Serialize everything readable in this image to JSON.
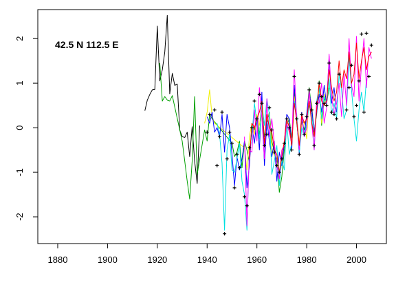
{
  "chart_data": {
    "type": "line",
    "title": "",
    "xlabel": "",
    "ylabel": "",
    "annotation": "42.5 N  112.5 E",
    "xlim": [
      1872,
      2012
    ],
    "ylim": [
      -2.6,
      2.65
    ],
    "x_ticks": [
      1880,
      1900,
      1920,
      1940,
      1960,
      1980,
      2000
    ],
    "y_ticks": [
      -2,
      -1,
      0,
      1,
      2
    ],
    "grid": false,
    "legend": "none",
    "series": [
      {
        "color": "#000000",
        "x": [
          1915,
          1916,
          1917,
          1918,
          1919,
          1920,
          1921,
          1922,
          1923,
          1924,
          1925,
          1926,
          1927,
          1928,
          1929,
          1930,
          1931,
          1932,
          1933,
          1934,
          1935,
          1936,
          1937
        ],
        "values": [
          0.38,
          0.62,
          0.75,
          0.85,
          0.86,
          2.28,
          1.05,
          1.3,
          1.7,
          2.52,
          0.76,
          1.22,
          0.95,
          0.98,
          -0.05,
          -0.2,
          -0.22,
          -0.1,
          -0.65,
          0.02,
          -0.75,
          -1.25,
          0.05
        ]
      },
      {
        "color": "#00A000",
        "x": [
          1921,
          1922,
          1923,
          1924,
          1925,
          1926,
          1930,
          1931,
          1932,
          1933,
          1934,
          1935,
          1936,
          1939,
          1940,
          1941,
          1942,
          1950,
          1951,
          1952,
          1953,
          1954,
          1955,
          1956,
          1957,
          1958,
          1959,
          1960,
          1961,
          1962,
          1963,
          1964,
          1965,
          1966,
          1967,
          1968,
          1969,
          1970,
          1971,
          1972,
          1973,
          1974,
          1975,
          1976,
          1977,
          1978,
          1979,
          1980,
          1981,
          1982,
          1983,
          1984,
          1985,
          1986,
          1987,
          1988,
          1989
        ],
        "values": [
          1.45,
          0.6,
          0.7,
          0.62,
          0.6,
          0.72,
          -0.3,
          -0.75,
          -1.2,
          -1.6,
          -0.75,
          0.7,
          -1.05,
          -0.05,
          -0.3,
          0.3,
          0.2,
          -0.35,
          -0.65,
          -0.55,
          -0.3,
          -0.9,
          -0.3,
          -0.5,
          -0.8,
          0.1,
          -0.05,
          0.25,
          -0.15,
          0.45,
          -0.2,
          0.1,
          0.35,
          -0.3,
          -0.55,
          -0.7,
          -1.45,
          -1.1,
          -0.5,
          0.05,
          0.2,
          -0.25,
          0.8,
          0.1,
          -0.4,
          0.15,
          -0.05,
          0.25,
          0.9,
          0.4,
          -0.1,
          0.3,
          1.05,
          0.05,
          0.65,
          0.55,
          0.9
        ]
      },
      {
        "color": "#F0F000",
        "x": [
          1939,
          1940,
          1941,
          1942,
          1943,
          1955,
          1956,
          1957,
          1958,
          1959,
          1960,
          1961,
          1962,
          1963,
          1964,
          1965,
          1966,
          1967,
          1968,
          1969,
          1970,
          1971,
          1972,
          1973,
          1974,
          1975,
          1976,
          1977,
          1978,
          1979,
          1980,
          1981,
          1982,
          1983,
          1984,
          1985,
          1986,
          1987,
          1988
        ],
        "values": [
          0.1,
          0.35,
          0.85,
          0.25,
          0.1,
          -0.45,
          -0.95,
          -0.2,
          0.1,
          -0.15,
          0.3,
          0.05,
          0.5,
          -0.4,
          0.25,
          0.3,
          -0.55,
          -0.6,
          -0.8,
          -1.05,
          -0.5,
          -0.4,
          0.1,
          0.1,
          -0.45,
          0.7,
          0.25,
          -0.35,
          0.05,
          0.15,
          -0.25,
          0.75,
          0.55,
          -0.15,
          0.45,
          0.9,
          0.1,
          0.75,
          0.5
        ]
      },
      {
        "color": "#0000FF",
        "x": [
          1940,
          1941,
          1942,
          1943,
          1944,
          1945,
          1946,
          1947,
          1948,
          1949,
          1950,
          1951,
          1952,
          1953,
          1954,
          1955,
          1956,
          1957,
          1958,
          1959,
          1960,
          1961,
          1962,
          1963,
          1964,
          1965,
          1966,
          1967,
          1968,
          1969,
          1970,
          1971,
          1972,
          1973,
          1974,
          1975,
          1976,
          1977,
          1978,
          1979,
          1980,
          1981,
          1982,
          1983,
          1984,
          1985,
          1986,
          1987,
          1988,
          1989,
          1990,
          1991,
          1992
        ],
        "values": [
          0.25,
          0.1,
          0.35,
          -0.1,
          0.0,
          -0.2,
          0.3,
          -0.55,
          0.3,
          0.0,
          -0.6,
          -1.3,
          -0.65,
          -0.95,
          -0.7,
          -0.3,
          -1.35,
          -0.85,
          0.05,
          -0.35,
          0.2,
          -0.5,
          0.8,
          -0.85,
          0.15,
          -0.3,
          -0.65,
          -0.3,
          -1.2,
          -0.55,
          -0.85,
          -0.35,
          0.3,
          0.2,
          -0.5,
          0.95,
          0.2,
          -0.6,
          0.35,
          -0.2,
          0.3,
          0.8,
          0.45,
          -0.1,
          0.35,
          0.75,
          0.35,
          0.95,
          0.5,
          1.6,
          0.55,
          0.9,
          0.35
        ]
      },
      {
        "color": "#00E0E0",
        "x": [
          1944,
          1945,
          1946,
          1947,
          1948,
          1949,
          1950,
          1951,
          1952,
          1953,
          1954,
          1955,
          1956,
          1957,
          1958,
          1959,
          1960,
          1961,
          1962,
          1963,
          1964,
          1965,
          1966,
          1967,
          1968,
          1969,
          1970,
          1971,
          1972,
          1973,
          1974,
          1975,
          1976,
          1977,
          1978,
          1979,
          1980,
          1981,
          1982,
          1983,
          1984,
          1985,
          1986,
          1987,
          1988,
          1989,
          1990,
          1991,
          1992,
          1993,
          1994,
          1995,
          1996,
          1997,
          1998,
          1999,
          2000,
          2001,
          2002,
          2003,
          2004
        ],
        "values": [
          0.1,
          -0.15,
          -0.8,
          -2.3,
          -0.5,
          -0.15,
          -0.95,
          -1.0,
          -0.7,
          -0.35,
          -1.2,
          -1.5,
          -2.3,
          -0.45,
          -0.2,
          0.55,
          0.1,
          -0.25,
          0.55,
          0.05,
          0.65,
          0.3,
          -1.05,
          -0.75,
          -0.4,
          -1.3,
          -0.7,
          -0.95,
          0.15,
          -0.6,
          -0.35,
          0.6,
          0.3,
          -0.55,
          0.0,
          -0.2,
          0.1,
          0.5,
          0.3,
          -0.5,
          0.6,
          0.9,
          0.2,
          0.7,
          0.55,
          1.1,
          0.3,
          0.55,
          0.2,
          1.2,
          0.85,
          0.2,
          0.4,
          1.6,
          0.85,
          0.2,
          -0.3,
          0.4,
          0.8,
          0.35,
          1.1
        ]
      },
      {
        "color": "#FF00FF",
        "x": [
          1955,
          1956,
          1957,
          1958,
          1959,
          1960,
          1961,
          1962,
          1963,
          1964,
          1965,
          1966,
          1967,
          1968,
          1969,
          1970,
          1971,
          1972,
          1973,
          1974,
          1975,
          1976,
          1977,
          1978,
          1979,
          1980,
          1981,
          1982,
          1983,
          1984,
          1985,
          1986,
          1987,
          1988,
          1989,
          1990,
          1991,
          1992,
          1993,
          1994,
          1995,
          1996,
          1997,
          1998,
          1999,
          2000,
          2001,
          2002,
          2003,
          2004,
          2005,
          2006
        ],
        "values": [
          -0.2,
          -2.2,
          -0.5,
          -0.55,
          0.4,
          -0.3,
          0.9,
          0.2,
          -0.7,
          0.65,
          -0.2,
          0.2,
          -0.35,
          -0.85,
          -1.15,
          -0.5,
          -0.4,
          0.1,
          -0.1,
          -0.35,
          1.3,
          0.2,
          -0.5,
          0.25,
          -0.2,
          0.0,
          0.85,
          0.1,
          -0.5,
          0.6,
          0.55,
          1.0,
          0.1,
          0.45,
          1.65,
          0.7,
          0.3,
          0.55,
          1.0,
          0.25,
          1.2,
          0.5,
          2.0,
          0.95,
          0.7,
          2.05,
          0.6,
          1.4,
          2.0,
          0.9,
          1.8,
          1.55
        ]
      },
      {
        "color": "#FF0000",
        "x": [
          1957,
          1958,
          1959,
          1960,
          1961,
          1962,
          1963,
          1964,
          1965,
          1966,
          1967,
          1968,
          1969,
          1970,
          1971,
          1972,
          1973,
          1974,
          1975,
          1976,
          1977,
          1978,
          1979,
          1980,
          1981,
          1982,
          1983,
          1984,
          1985,
          1986,
          1987,
          1988,
          1989,
          1990,
          1991,
          1992,
          1993,
          1994,
          1995,
          1996,
          1997,
          1998,
          1999,
          2000,
          2001,
          2002,
          2003,
          2004,
          2005,
          2006
        ],
        "values": [
          -0.7,
          0.1,
          0.0,
          0.2,
          0.35,
          0.6,
          -0.35,
          0.3,
          0.0,
          -0.1,
          -0.5,
          -0.6,
          -1.0,
          -0.65,
          -0.3,
          0.2,
          0.0,
          -0.4,
          0.55,
          0.15,
          -0.4,
          0.3,
          0.1,
          0.2,
          0.6,
          0.1,
          -0.2,
          0.4,
          1.0,
          0.6,
          0.5,
          0.6,
          1.3,
          0.9,
          0.6,
          0.8,
          1.5,
          0.9,
          1.3,
          1.1,
          1.7,
          1.0,
          1.2,
          1.9,
          1.1,
          1.5,
          1.8,
          1.3,
          1.6,
          1.7
        ]
      }
    ],
    "markers": {
      "symbol": "+",
      "color": "#000000",
      "x": [
        1940,
        1941,
        1943,
        1944,
        1945,
        1946,
        1947,
        1948,
        1949,
        1950,
        1951,
        1952,
        1953,
        1955,
        1956,
        1957,
        1958,
        1959,
        1960,
        1961,
        1962,
        1963,
        1964,
        1965,
        1966,
        1967,
        1968,
        1969,
        1970,
        1971,
        1972,
        1973,
        1974,
        1975,
        1976,
        1977,
        1978,
        1979,
        1980,
        1981,
        1982,
        1983,
        1984,
        1985,
        1986,
        1987,
        1988,
        1989,
        1990,
        1991,
        1992,
        1993,
        1996,
        1997,
        1998,
        1999,
        2000,
        2001,
        2002,
        2003,
        2004,
        2005,
        2006
      ],
      "y": [
        -0.1,
        0.3,
        0.4,
        -0.85,
        -0.2,
        0.35,
        -2.38,
        -0.7,
        -0.1,
        -0.35,
        -1.35,
        -0.6,
        -0.9,
        -1.55,
        -1.75,
        -0.45,
        0.0,
        0.6,
        0.2,
        0.75,
        0.55,
        -0.4,
        -0.15,
        0.45,
        -0.05,
        -0.55,
        -0.85,
        -1.0,
        -0.7,
        -0.35,
        0.2,
        0.0,
        -0.5,
        1.15,
        0.2,
        -0.6,
        0.3,
        -0.15,
        0.25,
        0.85,
        0.4,
        -0.4,
        0.55,
        1.0,
        0.7,
        0.55,
        0.5,
        1.45,
        0.35,
        0.3,
        0.2,
        1.2,
        0.4,
        0.9,
        1.4,
        0.25,
        0.5,
        1.05,
        2.1,
        0.35,
        2.12,
        1.15,
        1.85
      ]
    }
  }
}
